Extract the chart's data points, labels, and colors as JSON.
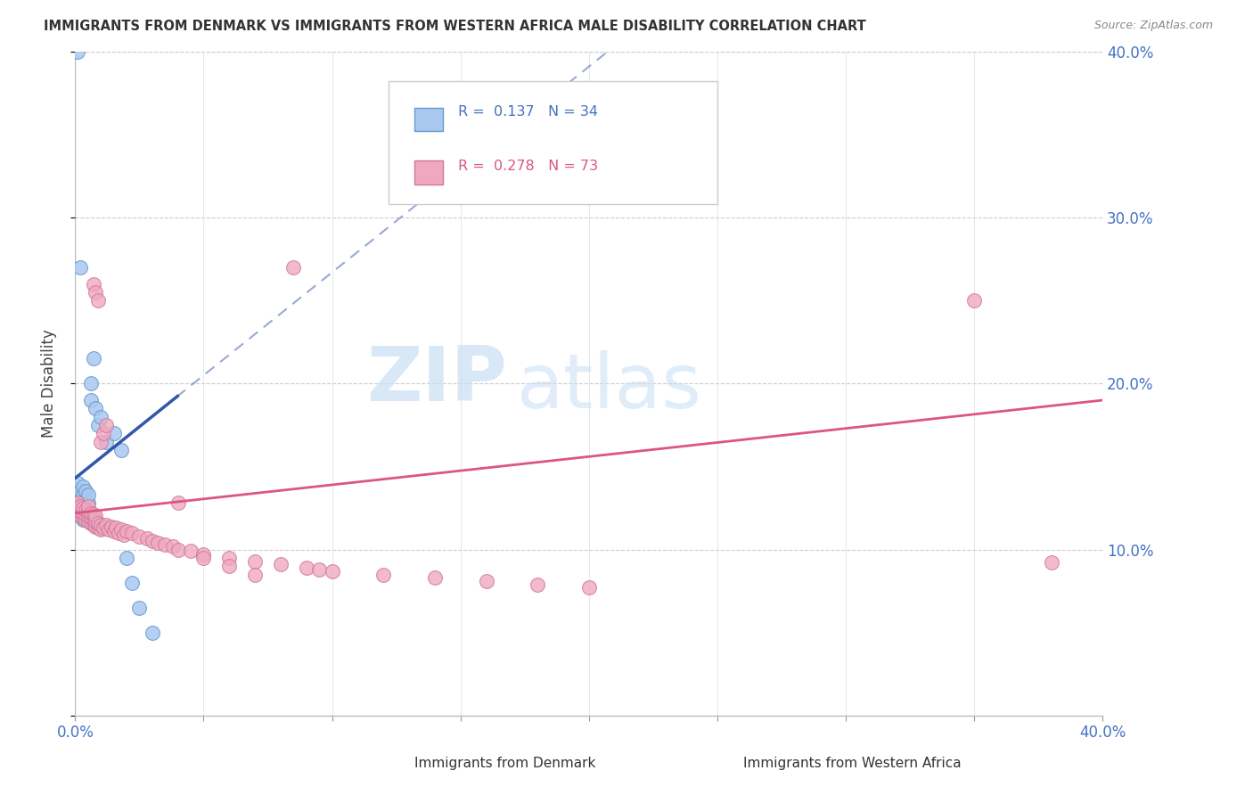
{
  "title": "IMMIGRANTS FROM DENMARK VS IMMIGRANTS FROM WESTERN AFRICA MALE DISABILITY CORRELATION CHART",
  "source": "Source: ZipAtlas.com",
  "ylabel": "Male Disability",
  "xlim": [
    0.0,
    0.4
  ],
  "ylim": [
    0.0,
    0.4
  ],
  "color_denmark": "#a8c8f0",
  "color_denmark_edge": "#6699cc",
  "color_denmark_line": "#3355aa",
  "color_wa": "#f0a8c0",
  "color_wa_edge": "#cc7799",
  "color_wa_line": "#dd5580",
  "color_axis_labels": "#4472c4",
  "background_color": "#ffffff",
  "grid_color": "#cccccc",
  "watermark_zip": "ZIP",
  "watermark_atlas": "atlas",
  "title_color": "#333333",
  "source_color": "#888888",
  "legend_text_r1": "R =  0.137",
  "legend_text_n1": "N = 34",
  "legend_text_r2": "R =  0.278",
  "legend_text_n2": "N = 73",
  "dk_trend_x0": 0.0,
  "dk_trend_y0": 0.143,
  "dk_trend_x1": 0.05,
  "dk_trend_y1": 0.205,
  "wa_trend_x0": 0.0,
  "wa_trend_y0": 0.122,
  "wa_trend_x1": 0.4,
  "wa_trend_y1": 0.19,
  "dk_scatter_x": [
    0.001,
    0.001,
    0.001,
    0.002,
    0.002,
    0.002,
    0.002,
    0.003,
    0.003,
    0.003,
    0.003,
    0.003,
    0.004,
    0.004,
    0.004,
    0.004,
    0.005,
    0.005,
    0.005,
    0.006,
    0.006,
    0.007,
    0.008,
    0.009,
    0.01,
    0.012,
    0.015,
    0.018,
    0.02,
    0.022,
    0.025,
    0.03,
    0.002,
    0.001
  ],
  "dk_scatter_y": [
    0.125,
    0.13,
    0.14,
    0.12,
    0.125,
    0.13,
    0.135,
    0.118,
    0.122,
    0.128,
    0.133,
    0.138,
    0.12,
    0.125,
    0.13,
    0.135,
    0.122,
    0.128,
    0.133,
    0.19,
    0.2,
    0.215,
    0.185,
    0.175,
    0.18,
    0.165,
    0.17,
    0.16,
    0.095,
    0.08,
    0.065,
    0.05,
    0.27,
    0.4
  ],
  "wa_scatter_x": [
    0.001,
    0.001,
    0.001,
    0.002,
    0.002,
    0.002,
    0.003,
    0.003,
    0.003,
    0.004,
    0.004,
    0.004,
    0.005,
    0.005,
    0.005,
    0.005,
    0.006,
    0.006,
    0.006,
    0.007,
    0.007,
    0.007,
    0.008,
    0.008,
    0.008,
    0.009,
    0.009,
    0.01,
    0.01,
    0.011,
    0.012,
    0.013,
    0.014,
    0.015,
    0.016,
    0.017,
    0.018,
    0.019,
    0.02,
    0.022,
    0.025,
    0.028,
    0.03,
    0.032,
    0.035,
    0.038,
    0.04,
    0.045,
    0.05,
    0.06,
    0.07,
    0.08,
    0.09,
    0.095,
    0.085,
    0.1,
    0.12,
    0.14,
    0.16,
    0.18,
    0.2,
    0.007,
    0.008,
    0.009,
    0.01,
    0.011,
    0.012,
    0.35,
    0.38,
    0.04,
    0.05,
    0.06,
    0.07
  ],
  "wa_scatter_y": [
    0.122,
    0.125,
    0.128,
    0.12,
    0.123,
    0.126,
    0.119,
    0.122,
    0.125,
    0.118,
    0.121,
    0.124,
    0.117,
    0.12,
    0.123,
    0.126,
    0.116,
    0.119,
    0.122,
    0.115,
    0.118,
    0.121,
    0.114,
    0.117,
    0.12,
    0.113,
    0.116,
    0.112,
    0.115,
    0.113,
    0.115,
    0.112,
    0.114,
    0.111,
    0.113,
    0.11,
    0.112,
    0.109,
    0.111,
    0.11,
    0.108,
    0.107,
    0.105,
    0.104,
    0.103,
    0.102,
    0.1,
    0.099,
    0.097,
    0.095,
    0.093,
    0.091,
    0.089,
    0.088,
    0.27,
    0.087,
    0.085,
    0.083,
    0.081,
    0.079,
    0.077,
    0.26,
    0.255,
    0.25,
    0.165,
    0.17,
    0.175,
    0.25,
    0.092,
    0.128,
    0.095,
    0.09,
    0.085
  ]
}
